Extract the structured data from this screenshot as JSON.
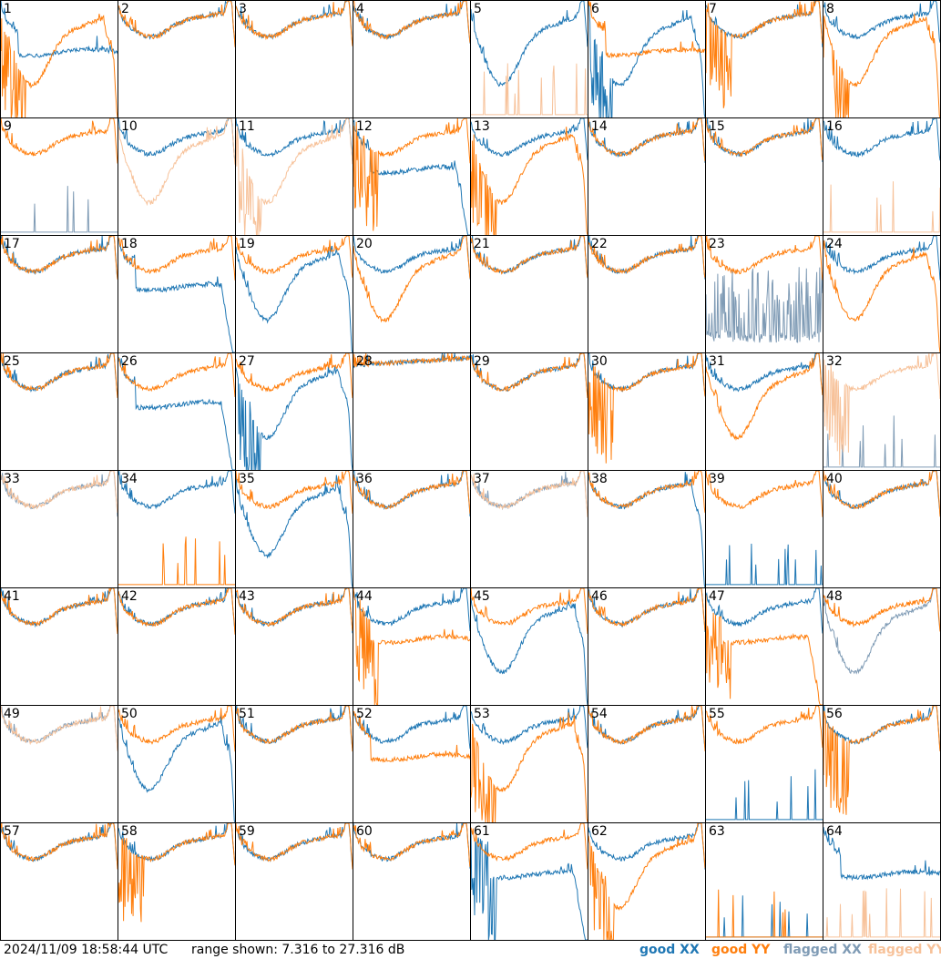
{
  "timestamp": "2024/11/09 18:58:44 UTC",
  "range_text": "range shown: 7.316 to 27.316 dB",
  "legend": [
    {
      "label": "good XX",
      "color": "#1f77b4"
    },
    {
      "label": "good YY",
      "color": "#ff7f0e"
    },
    {
      "label": "flagged XX",
      "color": "#7f9bb5"
    },
    {
      "label": "flagged YY",
      "color": "#f7c29a"
    }
  ],
  "chart_data": {
    "type": "line",
    "ylim": [
      7.316,
      27.316
    ],
    "yunit": "dB",
    "panels": [
      {
        "label": "1",
        "xx": "good",
        "yy": "good",
        "xx_shape": "plateau",
        "yy_shape": "dip",
        "yy_spiky": true,
        "yy_drop": true
      },
      {
        "label": "2",
        "xx": "good",
        "yy": "good"
      },
      {
        "label": "3",
        "xx": "good",
        "yy": "good"
      },
      {
        "label": "4",
        "xx": "good",
        "yy": "good"
      },
      {
        "label": "5",
        "xx": "good",
        "yy": "flagged",
        "xx_shape": "dip",
        "yy_shape": "spikes_low"
      },
      {
        "label": "6",
        "xx": "good",
        "yy": "good",
        "xx_shape": "dip",
        "yy_shape": "plateau",
        "xx_drop": true,
        "xx_spiky": true
      },
      {
        "label": "7",
        "xx": "good",
        "yy": "good",
        "yy_spiky": true
      },
      {
        "label": "8",
        "xx": "good",
        "yy": "good",
        "yy_shape": "dip",
        "yy_drop": true,
        "yy_spiky": true
      },
      {
        "label": "9",
        "xx": "flagged",
        "yy": "good",
        "xx_shape": "spikes_low"
      },
      {
        "label": "10",
        "xx": "good",
        "yy": "flagged",
        "yy_shape": "dip"
      },
      {
        "label": "11",
        "xx": "good",
        "yy": "flagged",
        "yy_shape": "dip",
        "yy_spiky": true
      },
      {
        "label": "12",
        "xx": "good",
        "yy": "good",
        "xx_shape": "plateau",
        "xx_drop": true,
        "yy_spiky": true
      },
      {
        "label": "13",
        "xx": "good",
        "yy": "good",
        "yy_shape": "dip",
        "yy_spiky": true,
        "yy_drop": true
      },
      {
        "label": "14",
        "xx": "good",
        "yy": "good"
      },
      {
        "label": "15",
        "xx": "good",
        "yy": "good"
      },
      {
        "label": "16",
        "xx": "good",
        "yy": "flagged",
        "yy_shape": "spikes_low"
      },
      {
        "label": "17",
        "xx": "good",
        "yy": "good"
      },
      {
        "label": "18",
        "xx": "good",
        "yy": "good",
        "xx_shape": "plateau",
        "xx_drop": true
      },
      {
        "label": "19",
        "xx": "good",
        "yy": "good",
        "xx_shape": "dip",
        "xx_drop": true
      },
      {
        "label": "20",
        "xx": "good",
        "yy": "good",
        "yy_shape": "dip"
      },
      {
        "label": "21",
        "xx": "good",
        "yy": "good"
      },
      {
        "label": "22",
        "xx": "good",
        "yy": "good"
      },
      {
        "label": "23",
        "xx": "flagged",
        "yy": "good",
        "xx_shape": "noise"
      },
      {
        "label": "24",
        "xx": "good",
        "yy": "good",
        "yy_shape": "dip",
        "yy_drop": true
      },
      {
        "label": "25",
        "xx": "good",
        "yy": "good"
      },
      {
        "label": "26",
        "xx": "good",
        "yy": "good",
        "xx_shape": "plateau",
        "xx_drop": true
      },
      {
        "label": "27",
        "xx": "good",
        "yy": "good",
        "xx_shape": "dip",
        "xx_spiky": true,
        "xx_drop": true
      },
      {
        "label": "28",
        "xx": "good",
        "yy": "good",
        "xx_shape": "flat",
        "yy_shape": "flat"
      },
      {
        "label": "29",
        "xx": "good",
        "yy": "good"
      },
      {
        "label": "30",
        "xx": "good",
        "yy": "good",
        "yy_spiky": true
      },
      {
        "label": "31",
        "xx": "good",
        "yy": "good",
        "yy_shape": "dip"
      },
      {
        "label": "32",
        "xx": "flagged",
        "yy": "flagged",
        "xx_shape": "spikes_low",
        "yy_spiky": true
      },
      {
        "label": "33",
        "xx": "flagged",
        "yy": "flagged"
      },
      {
        "label": "34",
        "xx": "good",
        "yy": "good",
        "yy_shape": "spikes_low"
      },
      {
        "label": "35",
        "xx": "good",
        "yy": "good",
        "xx_shape": "dip",
        "xx_drop": true
      },
      {
        "label": "36",
        "xx": "good",
        "yy": "good"
      },
      {
        "label": "37",
        "xx": "flagged",
        "yy": "flagged"
      },
      {
        "label": "38",
        "xx": "good",
        "yy": "good",
        "xx_drop": true
      },
      {
        "label": "39",
        "xx": "good",
        "yy": "good",
        "xx_shape": "spikes_low"
      },
      {
        "label": "40",
        "xx": "good",
        "yy": "good"
      },
      {
        "label": "41",
        "xx": "good",
        "yy": "good"
      },
      {
        "label": "42",
        "xx": "good",
        "yy": "good"
      },
      {
        "label": "43",
        "xx": "good",
        "yy": "good"
      },
      {
        "label": "44",
        "xx": "good",
        "yy": "good",
        "yy_shape": "plateau",
        "yy_spiky": true
      },
      {
        "label": "45",
        "xx": "good",
        "yy": "good",
        "xx_shape": "dip",
        "xx_drop": true
      },
      {
        "label": "46",
        "xx": "good",
        "yy": "good"
      },
      {
        "label": "47",
        "xx": "good",
        "yy": "good",
        "yy_shape": "plateau",
        "yy_spiky": true,
        "yy_drop": true
      },
      {
        "label": "48",
        "xx": "flagged",
        "yy": "good",
        "xx_shape": "dip"
      },
      {
        "label": "49",
        "xx": "flagged",
        "yy": "flagged"
      },
      {
        "label": "50",
        "xx": "good",
        "yy": "good",
        "xx_shape": "dip",
        "xx_drop": true
      },
      {
        "label": "51",
        "xx": "good",
        "yy": "good"
      },
      {
        "label": "52",
        "xx": "good",
        "yy": "good",
        "yy_shape": "plateau"
      },
      {
        "label": "53",
        "xx": "good",
        "yy": "good",
        "yy_shape": "dip",
        "yy_drop": true,
        "yy_spiky": true
      },
      {
        "label": "54",
        "xx": "good",
        "yy": "good"
      },
      {
        "label": "55",
        "xx": "good",
        "yy": "good",
        "xx_shape": "spikes_low"
      },
      {
        "label": "56",
        "xx": "good",
        "yy": "good",
        "yy_spiky": true
      },
      {
        "label": "57",
        "xx": "good",
        "yy": "good"
      },
      {
        "label": "58",
        "xx": "good",
        "yy": "good",
        "yy_spiky": true
      },
      {
        "label": "59",
        "xx": "good",
        "yy": "good"
      },
      {
        "label": "60",
        "xx": "good",
        "yy": "good"
      },
      {
        "label": "61",
        "xx": "good",
        "yy": "good",
        "xx_shape": "plateau",
        "xx_spiky": true,
        "xx_drop": true
      },
      {
        "label": "62",
        "xx": "good",
        "yy": "good",
        "yy_shape": "dip",
        "yy_spiky": true
      },
      {
        "label": "63",
        "xx": "good",
        "yy": "good",
        "yy_shape": "spikes_low",
        "xx_shape": "spikes_low"
      },
      {
        "label": "64",
        "xx": "good",
        "yy": "flagged",
        "xx_shape": "plateau",
        "yy_shape": "spikes_low"
      }
    ]
  }
}
